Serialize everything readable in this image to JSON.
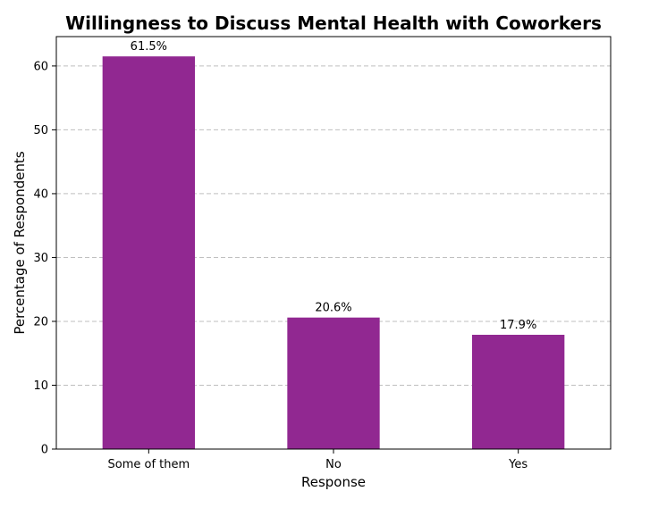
{
  "chart_data": {
    "type": "bar",
    "title": "Willingness to Discuss Mental Health with Coworkers",
    "xlabel": "Response",
    "ylabel": "Percentage of Respondents",
    "categories": [
      "Some of them",
      "No",
      "Yes"
    ],
    "values": [
      61.5,
      20.6,
      17.9
    ],
    "value_labels": [
      "61.5%",
      "20.6%",
      "17.9%"
    ],
    "ylim": [
      0,
      64.6
    ],
    "yticks": [
      0,
      10,
      20,
      30,
      40,
      50,
      60
    ],
    "grid": "y-axis dashed",
    "bar_color": "#912891"
  }
}
